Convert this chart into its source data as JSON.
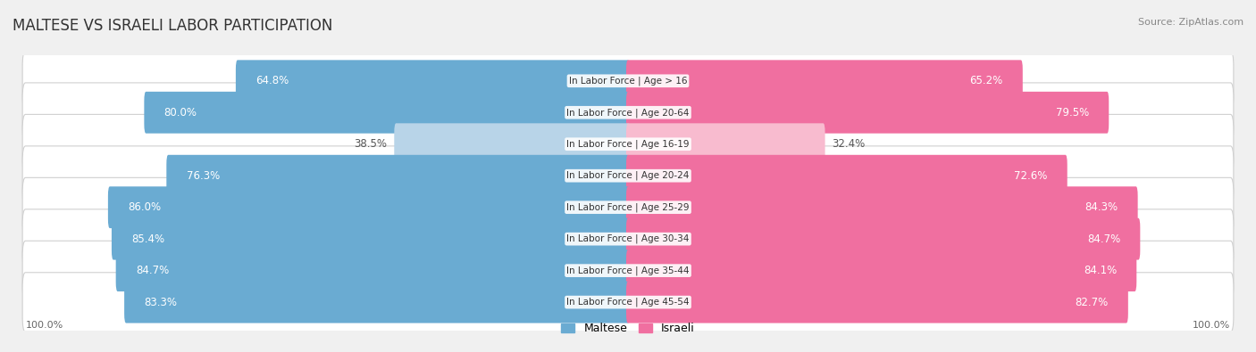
{
  "title": "MALTESE VS ISRAELI LABOR PARTICIPATION",
  "source": "Source: ZipAtlas.com",
  "categories": [
    "In Labor Force | Age > 16",
    "In Labor Force | Age 20-64",
    "In Labor Force | Age 16-19",
    "In Labor Force | Age 20-24",
    "In Labor Force | Age 25-29",
    "In Labor Force | Age 30-34",
    "In Labor Force | Age 35-44",
    "In Labor Force | Age 45-54"
  ],
  "maltese_values": [
    64.8,
    80.0,
    38.5,
    76.3,
    86.0,
    85.4,
    84.7,
    83.3
  ],
  "israeli_values": [
    65.2,
    79.5,
    32.4,
    72.6,
    84.3,
    84.7,
    84.1,
    82.7
  ],
  "maltese_color_strong": "#6AABD2",
  "maltese_color_light": "#B8D4E8",
  "israeli_color_strong": "#F06FA0",
  "israeli_color_light": "#F8BBCF",
  "background_color": "#f0f0f0",
  "row_bg_color": "#ffffff",
  "label_font_size": 8.5,
  "title_font_size": 12,
  "bar_height": 0.72,
  "max_value": 100.0,
  "legend_maltese": "Maltese",
  "legend_israeli": "Israeli"
}
